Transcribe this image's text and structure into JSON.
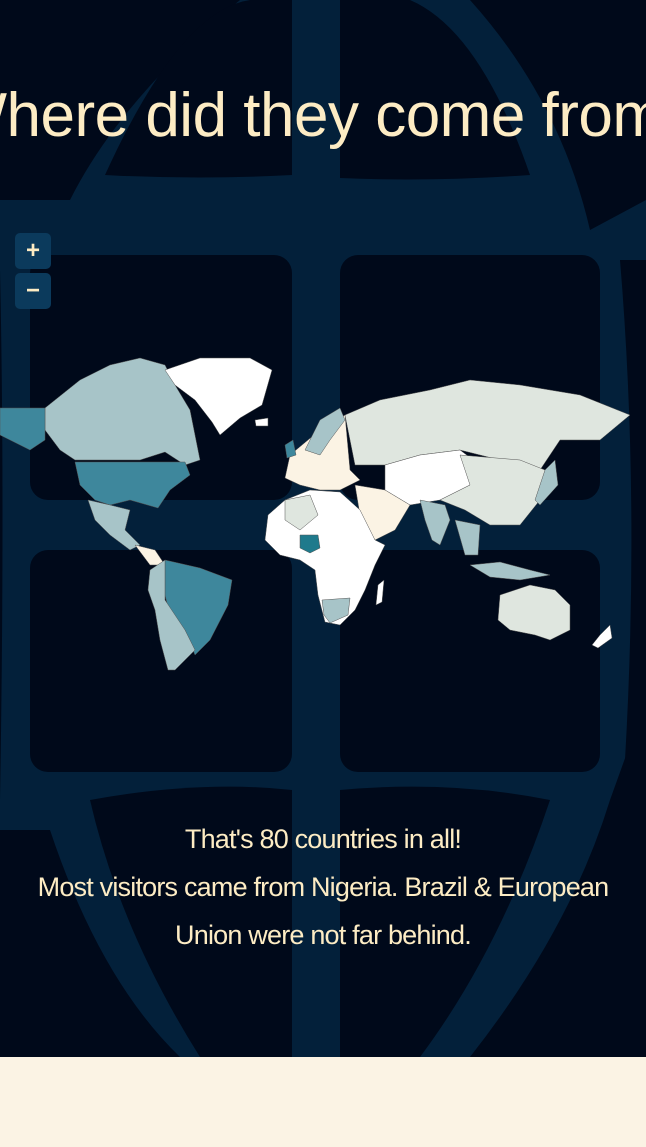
{
  "title": "Where did they come from?",
  "zoom_controls": {
    "zoom_in": "+",
    "zoom_out": "−"
  },
  "map": {
    "type": "choropleth",
    "colors": {
      "highest": "#1f7a8c",
      "high": "#3e879c",
      "medium": "#a7c4c8",
      "low": "#dfe6df",
      "lowest": "#fbf3e4",
      "none": "#ffffff",
      "border": "#555555"
    },
    "highlighted": [
      "Nigeria",
      "Brazil",
      "United States"
    ]
  },
  "summary": {
    "line1": "That's 80 countries in all!",
    "line2": "Most visitors came from Nigeria. Brazil & European",
    "line3": "Union were not far behind."
  },
  "theme": {
    "background": "#00091a",
    "globe_lines": "#03203a",
    "text": "#fdecc4",
    "footer": "#fbf3e4"
  }
}
